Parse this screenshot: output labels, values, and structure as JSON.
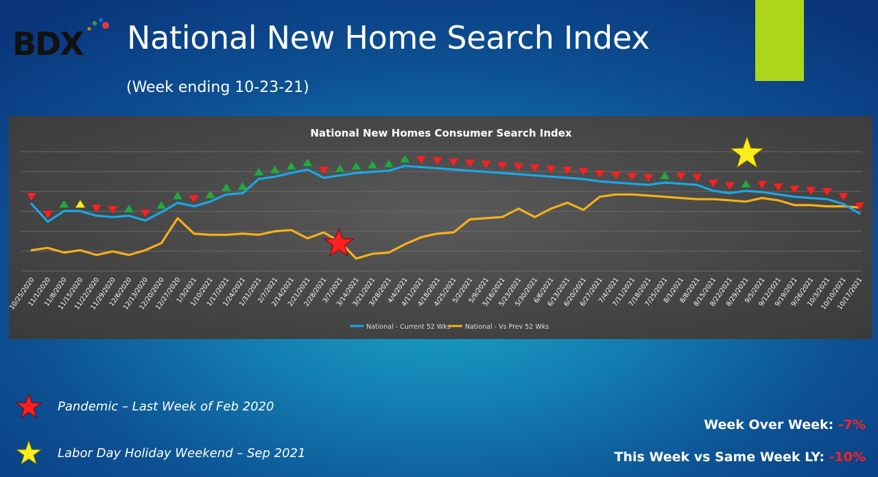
{
  "header": {
    "logo_text": "BDX",
    "title": "National New Home Search Index",
    "subtitle": "(Week ending 10-23-21)"
  },
  "colors": {
    "current_series": "#1aa7e6",
    "prev_series": "#f5b01a",
    "marker_up": "#1faa3c",
    "marker_down": "#ff1f1f",
    "marker_flat": "#f7ee1c",
    "accent_box": "#acd61c"
  },
  "chart_data": {
    "type": "line",
    "title": "National New Homes Consumer Search Index",
    "categories": [
      "10/25/2020",
      "11/1/2020",
      "11/8/2020",
      "11/15/2020",
      "11/22/2020",
      "11/29/2020",
      "12/6/2020",
      "12/13/2020",
      "12/20/2020",
      "12/27/2020",
      "1/3/2021",
      "1/10/2021",
      "1/17/2021",
      "1/24/2021",
      "1/31/2021",
      "2/7/2021",
      "2/14/2021",
      "2/21/2021",
      "2/28/2021",
      "3/7/2021",
      "3/14/2021",
      "3/21/2021",
      "3/28/2021",
      "4/4/2021",
      "4/11/2021",
      "4/18/2021",
      "4/25/2021",
      "5/2/2021",
      "5/9/2021",
      "5/16/2021",
      "5/23/2021",
      "5/30/2021",
      "6/6/2021",
      "6/13/2021",
      "6/20/2021",
      "6/27/2021",
      "7/4/2021",
      "7/11/2021",
      "7/18/2021",
      "7/25/2021",
      "8/1/2021",
      "8/8/2021",
      "8/15/2021",
      "8/22/2021",
      "8/29/2021",
      "9/5/2021",
      "9/12/2021",
      "9/19/2021",
      "9/26/2021",
      "10/3/2021",
      "10/10/2021",
      "10/17/2021"
    ],
    "y_gridlines": 7,
    "series": [
      {
        "name": "National - Current 52 Wks",
        "values": [
          44,
          59,
          50,
          50,
          54,
          55,
          54,
          58,
          51,
          43,
          46,
          42,
          36,
          35,
          23,
          21,
          18,
          15,
          22,
          20,
          18,
          17,
          16,
          12,
          13,
          14,
          15,
          16,
          17,
          18,
          19,
          20,
          21,
          22,
          23,
          25,
          26,
          27,
          28,
          26,
          27,
          28,
          33,
          35,
          33,
          34,
          36,
          38,
          39,
          40,
          44,
          52
        ],
        "markers": [
          "down",
          "down",
          "up",
          "flat",
          "down",
          "down",
          "up",
          "down",
          "up",
          "up",
          "down",
          "up",
          "up",
          "up",
          "up",
          "up",
          "up",
          "up",
          "down",
          "up",
          "up",
          "up",
          "up",
          "up",
          "down",
          "down",
          "down",
          "down",
          "down",
          "down",
          "down",
          "down",
          "down",
          "down",
          "down",
          "down",
          "down",
          "down",
          "down",
          "up",
          "down",
          "down",
          "down",
          "down",
          "up",
          "down",
          "down",
          "down",
          "down",
          "down",
          "down",
          "down"
        ]
      },
      {
        "name": "National - Vs Prev 52 Wks",
        "values": [
          83,
          81,
          85,
          83,
          87,
          84,
          87,
          83,
          77,
          56,
          69,
          70,
          70,
          69,
          70,
          67,
          66,
          73,
          68,
          76,
          90,
          86,
          85,
          78,
          72,
          69,
          68,
          57,
          56,
          55,
          48,
          55,
          48,
          43,
          49,
          38,
          36,
          36,
          37,
          38,
          39,
          40,
          40,
          41,
          42,
          39,
          41,
          45,
          45,
          46,
          46,
          47
        ]
      }
    ],
    "annotations": [
      "red-star-pandemic",
      "yellow-star-labor-day"
    ]
  },
  "legend_notes": [
    {
      "icon": "red-star-icon",
      "color": "#ff1f1f",
      "text": "Pandemic – Last Week of Feb 2020"
    },
    {
      "icon": "yellow-star-icon",
      "color": "#f7ee1c",
      "text": "Labor Day Holiday Weekend – Sep 2021"
    }
  ],
  "stats": {
    "wow_label": "Week Over Week:",
    "wow_value": "-7%",
    "yoy_label": "This Week vs Same Week LY:",
    "yoy_value": "-10%"
  }
}
